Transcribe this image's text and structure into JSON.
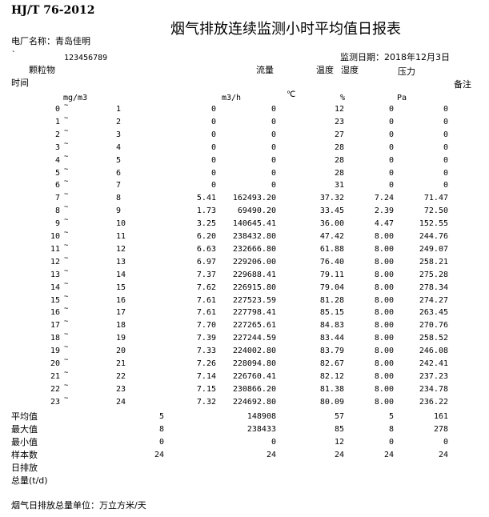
{
  "header": {
    "standard": "HJ/T 76-2012",
    "title": "烟气排放连续监测小时平均值日报表",
    "plant_label": "电厂名称：青岛佳明",
    "backtick": "`",
    "plant_code": "123456789",
    "date_label": "监测日期：2018年12月3日"
  },
  "columns": {
    "particles": "颗粒物",
    "flow": "流量",
    "temperature": "温度",
    "humidity": "湿度",
    "pressure": "压力",
    "time": "时间",
    "remarks": "备注",
    "particles_unit": "mg/m3",
    "flow_unit": "m3/h",
    "temperature_unit": "℃",
    "humidity_unit": "%",
    "pressure_unit": "Pa"
  },
  "tilde": "~",
  "rows": [
    {
      "start": "0",
      "end": "1",
      "particles": "0",
      "flow": "0",
      "temperature": "12",
      "humidity": "0",
      "pressure": "0"
    },
    {
      "start": "1",
      "end": "2",
      "particles": "0",
      "flow": "0",
      "temperature": "23",
      "humidity": "0",
      "pressure": "0"
    },
    {
      "start": "2",
      "end": "3",
      "particles": "0",
      "flow": "0",
      "temperature": "27",
      "humidity": "0",
      "pressure": "0"
    },
    {
      "start": "3",
      "end": "4",
      "particles": "0",
      "flow": "0",
      "temperature": "28",
      "humidity": "0",
      "pressure": "0"
    },
    {
      "start": "4",
      "end": "5",
      "particles": "0",
      "flow": "0",
      "temperature": "28",
      "humidity": "0",
      "pressure": "0"
    },
    {
      "start": "5",
      "end": "6",
      "particles": "0",
      "flow": "0",
      "temperature": "28",
      "humidity": "0",
      "pressure": "0"
    },
    {
      "start": "6",
      "end": "7",
      "particles": "0",
      "flow": "0",
      "temperature": "31",
      "humidity": "0",
      "pressure": "0"
    },
    {
      "start": "7",
      "end": "8",
      "particles": "5.41",
      "flow": "162493.20",
      "temperature": "37.32",
      "humidity": "7.24",
      "pressure": "71.47"
    },
    {
      "start": "8",
      "end": "9",
      "particles": "1.73",
      "flow": "69490.20",
      "temperature": "33.45",
      "humidity": "2.39",
      "pressure": "72.50"
    },
    {
      "start": "9",
      "end": "10",
      "particles": "3.25",
      "flow": "140645.41",
      "temperature": "36.00",
      "humidity": "4.47",
      "pressure": "152.55"
    },
    {
      "start": "10",
      "end": "11",
      "particles": "6.20",
      "flow": "238432.80",
      "temperature": "47.42",
      "humidity": "8.00",
      "pressure": "244.76"
    },
    {
      "start": "11",
      "end": "12",
      "particles": "6.63",
      "flow": "232666.80",
      "temperature": "61.88",
      "humidity": "8.00",
      "pressure": "249.07"
    },
    {
      "start": "12",
      "end": "13",
      "particles": "6.97",
      "flow": "229206.00",
      "temperature": "76.40",
      "humidity": "8.00",
      "pressure": "258.21"
    },
    {
      "start": "13",
      "end": "14",
      "particles": "7.37",
      "flow": "229688.41",
      "temperature": "79.11",
      "humidity": "8.00",
      "pressure": "275.28"
    },
    {
      "start": "14",
      "end": "15",
      "particles": "7.62",
      "flow": "226915.80",
      "temperature": "79.04",
      "humidity": "8.00",
      "pressure": "278.34"
    },
    {
      "start": "15",
      "end": "16",
      "particles": "7.61",
      "flow": "227523.59",
      "temperature": "81.28",
      "humidity": "8.00",
      "pressure": "274.27"
    },
    {
      "start": "16",
      "end": "17",
      "particles": "7.61",
      "flow": "227798.41",
      "temperature": "85.15",
      "humidity": "8.00",
      "pressure": "263.45"
    },
    {
      "start": "17",
      "end": "18",
      "particles": "7.70",
      "flow": "227265.61",
      "temperature": "84.83",
      "humidity": "8.00",
      "pressure": "270.76"
    },
    {
      "start": "18",
      "end": "19",
      "particles": "7.39",
      "flow": "227244.59",
      "temperature": "83.44",
      "humidity": "8.00",
      "pressure": "258.52"
    },
    {
      "start": "19",
      "end": "20",
      "particles": "7.33",
      "flow": "224002.80",
      "temperature": "83.79",
      "humidity": "8.00",
      "pressure": "246.08"
    },
    {
      "start": "20",
      "end": "21",
      "particles": "7.26",
      "flow": "228094.80",
      "temperature": "82.67",
      "humidity": "8.00",
      "pressure": "242.41"
    },
    {
      "start": "21",
      "end": "22",
      "particles": "7.14",
      "flow": "226760.41",
      "temperature": "82.12",
      "humidity": "8.00",
      "pressure": "237.23"
    },
    {
      "start": "22",
      "end": "23",
      "particles": "7.15",
      "flow": "230866.20",
      "temperature": "81.38",
      "humidity": "8.00",
      "pressure": "234.78"
    },
    {
      "start": "23",
      "end": "24",
      "particles": "7.32",
      "flow": "224692.80",
      "temperature": "80.09",
      "humidity": "8.00",
      "pressure": "236.22"
    }
  ],
  "summary": [
    {
      "label": "平均值",
      "particles": "5",
      "flow": "148908",
      "temperature": "57",
      "humidity": "5",
      "pressure": "161"
    },
    {
      "label": "最大值",
      "particles": "8",
      "flow": "238433",
      "temperature": "85",
      "humidity": "8",
      "pressure": "278"
    },
    {
      "label": "最小值",
      "particles": "0",
      "flow": "0",
      "temperature": "12",
      "humidity": "0",
      "pressure": "0"
    },
    {
      "label": "样本数",
      "particles": "24",
      "flow": "24",
      "temperature": "24",
      "humidity": "24",
      "pressure": "24"
    },
    {
      "label": "日排放",
      "particles": "",
      "flow": "",
      "temperature": "",
      "humidity": "",
      "pressure": ""
    },
    {
      "label": "总量(t/d)",
      "particles": "",
      "flow": "",
      "temperature": "",
      "humidity": "",
      "pressure": ""
    }
  ],
  "footer": {
    "unit_note": "烟气日排放总量单位：万立方米/天"
  }
}
